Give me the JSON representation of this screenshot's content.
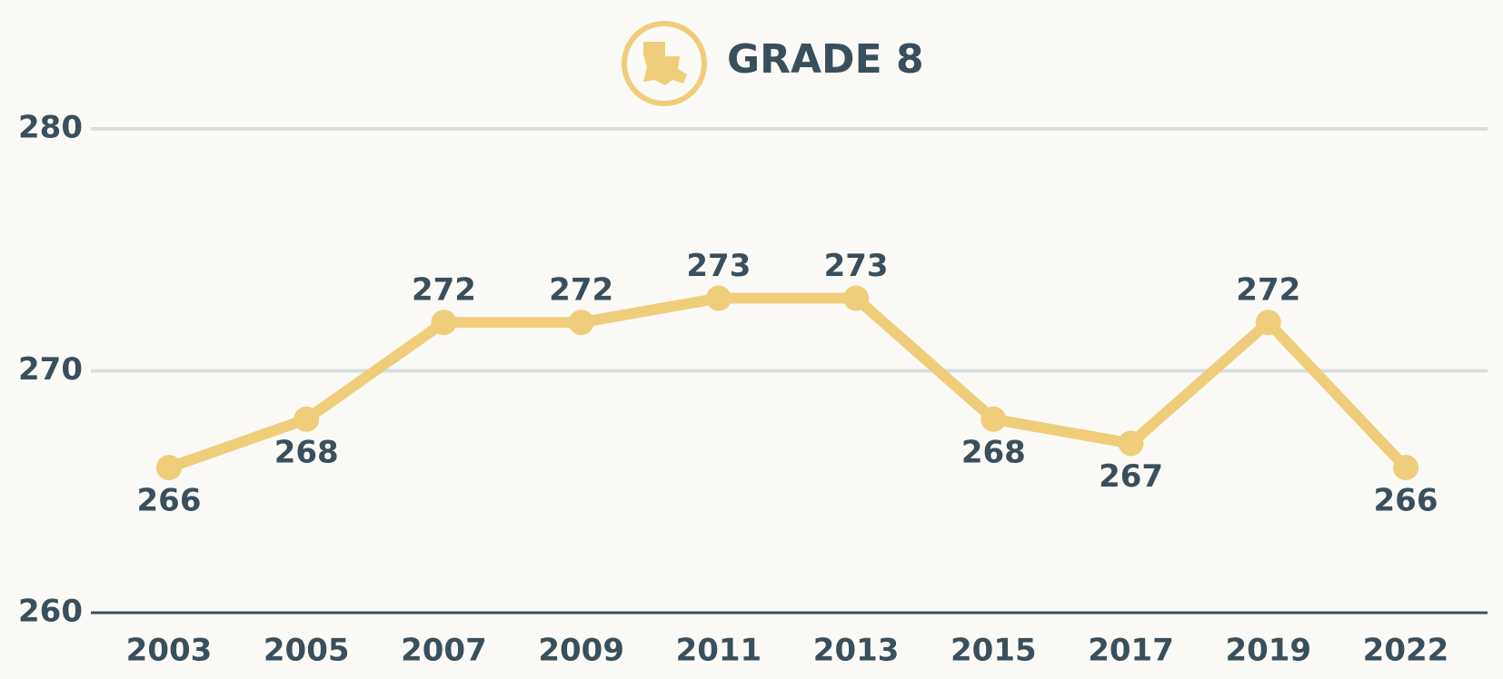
{
  "chart_data": {
    "type": "line",
    "title": "GRADE 8",
    "categories": [
      "2003",
      "2005",
      "2007",
      "2009",
      "2011",
      "2013",
      "2015",
      "2017",
      "2019",
      "2022"
    ],
    "series": [
      {
        "name": "Grade 8",
        "color": "#f0cd7a",
        "values": [
          266,
          268,
          272,
          272,
          273,
          273,
          268,
          267,
          272,
          266
        ]
      }
    ],
    "ylim": [
      260,
      280
    ],
    "yticks": [
      260,
      270,
      280
    ],
    "grid": true
  }
}
